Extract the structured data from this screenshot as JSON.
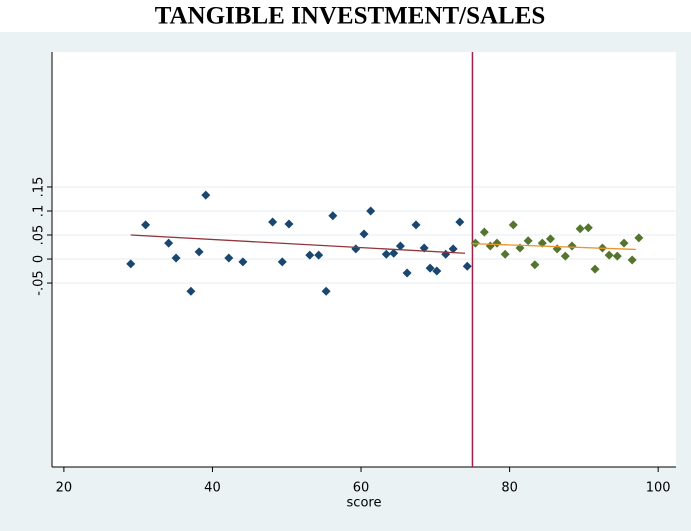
{
  "chart_data": {
    "type": "scatter",
    "title": "TANGIBLE INVESTMENT/SALES",
    "x_label": "score",
    "xlim": [
      18.4,
      102.4
    ],
    "xticks": [
      20,
      40,
      60,
      80,
      100
    ],
    "ylim": [
      -0.433,
      0.431
    ],
    "yticks": [
      {
        "value": -0.05,
        "label": "-.05"
      },
      0,
      {
        "value": 0.05,
        "label": ".05"
      },
      {
        "value": 0.1,
        "label": ".1"
      },
      {
        "value": 0.15,
        "label": ".15"
      }
    ],
    "grid": true,
    "cutoff": 75,
    "cutoff_color": "#a0204a",
    "series": [
      {
        "color": "#1a476f",
        "x": [
          29.0,
          31.0,
          34.1,
          35.1,
          37.1,
          38.2,
          39.1,
          42.2,
          44.1,
          48.1,
          49.4,
          50.3,
          53.1,
          54.3,
          55.3,
          56.2,
          59.3,
          60.4,
          61.3,
          63.4,
          64.4,
          65.3,
          66.2,
          67.4,
          68.5,
          69.3,
          70.2,
          71.4,
          72.4,
          73.3,
          74.3
        ],
        "values": [
          -0.01,
          0.071,
          0.033,
          0.002,
          -0.067,
          0.015,
          0.133,
          0.002,
          -0.006,
          0.077,
          -0.006,
          0.073,
          0.008,
          0.008,
          -0.067,
          0.09,
          0.021,
          0.052,
          0.1,
          0.01,
          0.012,
          0.027,
          -0.029,
          0.071,
          0.023,
          -0.019,
          -0.025,
          0.01,
          0.021,
          0.077,
          -0.015
        ]
      },
      {
        "color": "#55752f",
        "x": [
          75.4,
          76.6,
          77.4,
          78.3,
          79.4,
          80.5,
          81.4,
          82.5,
          83.4,
          84.4,
          85.5,
          86.4,
          87.5,
          88.4,
          89.5,
          90.6,
          91.5,
          92.5,
          93.4,
          94.5,
          95.4,
          96.5,
          97.4
        ],
        "values": [
          0.033,
          0.056,
          0.027,
          0.033,
          0.01,
          0.071,
          0.023,
          0.038,
          -0.012,
          0.033,
          0.042,
          0.021,
          0.006,
          0.027,
          0.063,
          0.065,
          -0.021,
          0.023,
          0.008,
          0.006,
          0.033,
          -0.002,
          0.044
        ]
      }
    ],
    "fits": [
      {
        "color": "#90353b",
        "x": [
          29,
          74
        ],
        "values": [
          0.05,
          0.012
        ]
      },
      {
        "color": "#e8952f",
        "x": [
          75,
          97
        ],
        "values": [
          0.032,
          0.02
        ]
      }
    ]
  }
}
